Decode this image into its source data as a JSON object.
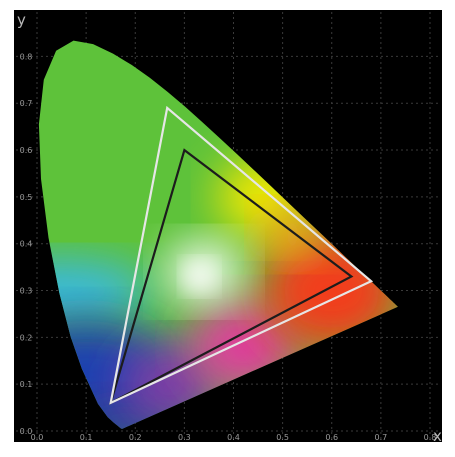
{
  "chart_data": {
    "type": "scatter",
    "subtype": "CIE 1931 chromaticity diagram",
    "title": "",
    "xlabel": "x",
    "ylabel": "y",
    "xlim": [
      0.0,
      0.8
    ],
    "ylim": [
      0.0,
      0.85
    ],
    "x_ticks": [
      "0.0",
      "0.1",
      "0.2",
      "0.3",
      "0.4",
      "0.5",
      "0.6",
      "0.7",
      "0.8"
    ],
    "y_ticks": [
      "0.0",
      "0.1",
      "0.2",
      "0.3",
      "0.4",
      "0.5",
      "0.6",
      "0.7",
      "0.8"
    ],
    "grid": true,
    "background_color": "#000000",
    "grid_color": "#3a3a3a",
    "series": [
      {
        "kind": "gamut-triangle",
        "stroke": "#1c1c1c",
        "points": [
          [
            0.64,
            0.33
          ],
          [
            0.3,
            0.6
          ],
          [
            0.15,
            0.06
          ]
        ]
      },
      {
        "kind": "gamut-triangle",
        "stroke": "#e6e6e6",
        "points": [
          [
            0.68,
            0.32
          ],
          [
            0.265,
            0.69
          ],
          [
            0.15,
            0.06
          ]
        ]
      }
    ],
    "spectral_locus": [
      [
        0.1741,
        0.005
      ],
      [
        0.1738,
        0.0049
      ],
      [
        0.1733,
        0.0048
      ],
      [
        0.1726,
        0.0048
      ],
      [
        0.1714,
        0.0051
      ],
      [
        0.1689,
        0.0069
      ],
      [
        0.1644,
        0.0109
      ],
      [
        0.1566,
        0.0177
      ],
      [
        0.144,
        0.0297
      ],
      [
        0.1241,
        0.0578
      ],
      [
        0.0913,
        0.1327
      ],
      [
        0.0687,
        0.2007
      ],
      [
        0.0454,
        0.295
      ],
      [
        0.0235,
        0.4127
      ],
      [
        0.0082,
        0.5384
      ],
      [
        0.0039,
        0.6548
      ],
      [
        0.0139,
        0.7502
      ],
      [
        0.0389,
        0.812
      ],
      [
        0.0743,
        0.8338
      ],
      [
        0.1142,
        0.8262
      ],
      [
        0.1547,
        0.8059
      ],
      [
        0.1929,
        0.7816
      ],
      [
        0.2296,
        0.7543
      ],
      [
        0.2658,
        0.7243
      ],
      [
        0.3016,
        0.6923
      ],
      [
        0.3373,
        0.6589
      ],
      [
        0.3731,
        0.6245
      ],
      [
        0.4087,
        0.5896
      ],
      [
        0.4441,
        0.5547
      ],
      [
        0.4788,
        0.5202
      ],
      [
        0.5125,
        0.4866
      ],
      [
        0.5448,
        0.4544
      ],
      [
        0.5752,
        0.4242
      ],
      [
        0.6029,
        0.3965
      ],
      [
        0.627,
        0.3725
      ],
      [
        0.6482,
        0.3514
      ],
      [
        0.6658,
        0.334
      ],
      [
        0.6801,
        0.3197
      ],
      [
        0.6915,
        0.3083
      ],
      [
        0.7006,
        0.2993
      ],
      [
        0.7079,
        0.292
      ],
      [
        0.714,
        0.2859
      ],
      [
        0.719,
        0.2809
      ],
      [
        0.723,
        0.277
      ],
      [
        0.726,
        0.274
      ],
      [
        0.7283,
        0.2717
      ],
      [
        0.73,
        0.27
      ],
      [
        0.7347,
        0.2653
      ]
    ],
    "color_stops": {
      "green": "#5ec23a",
      "cyan": "#38b8e6",
      "blue": "#1a3fb0",
      "white": "#ffffff",
      "yellow": "#f4e800",
      "red": "#f23c1f",
      "magenta": "#e03c9e",
      "purple": "#7a3aa8"
    }
  }
}
